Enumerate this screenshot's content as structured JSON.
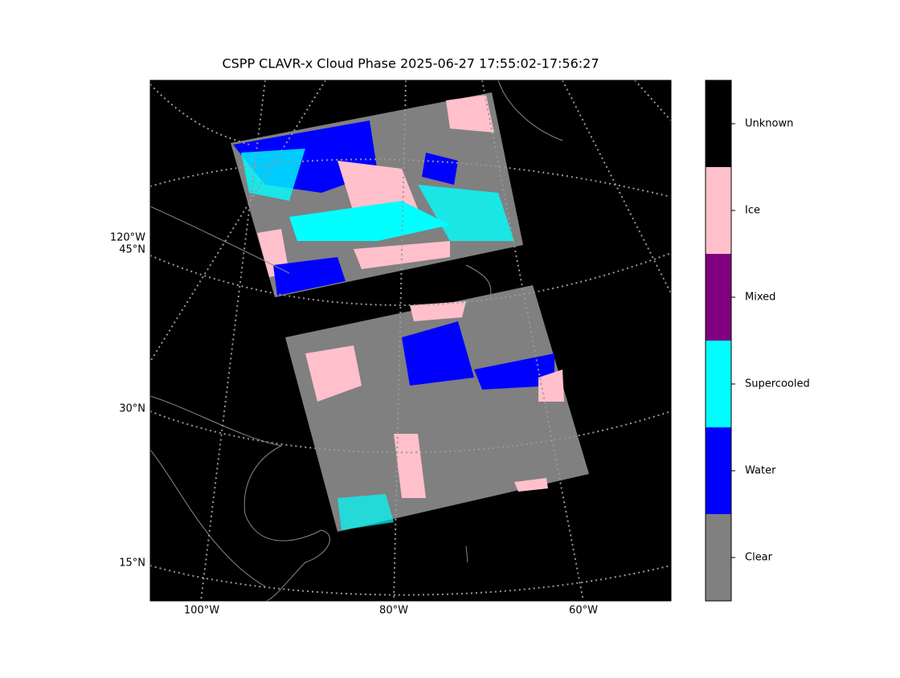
{
  "map": {
    "title": "CSPP CLAVR-x Cloud Phase 2025-06-27 17:55:02-17:56:27",
    "lat_labels": [
      "120°W",
      "45°N",
      "30°N",
      "15°N"
    ],
    "lon_labels": [
      "100°W",
      "80°W",
      "60°W"
    ]
  },
  "colorbar": {
    "classes": [
      {
        "label": "Clear",
        "color": "#808080"
      },
      {
        "label": "Water",
        "color": "#0000ff"
      },
      {
        "label": "Supercooled",
        "color": "#00ffff"
      },
      {
        "label": "Mixed",
        "color": "#800080"
      },
      {
        "label": "Ice",
        "color": "#ffc0cb"
      },
      {
        "label": "Unknown",
        "color": "#000000"
      }
    ]
  }
}
